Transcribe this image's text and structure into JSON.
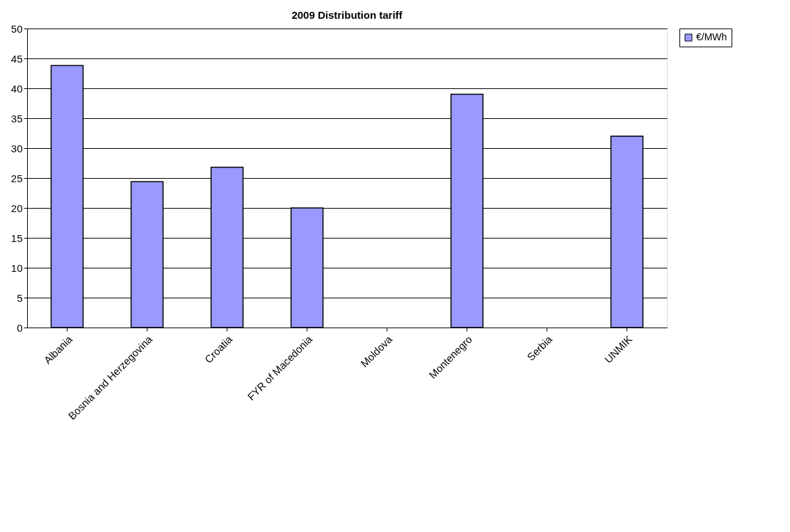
{
  "chart_data": {
    "type": "bar",
    "title": "2009 Distribution tariff",
    "categories": [
      "Albania",
      "Bosnia and Herzegovina",
      "Croatia",
      "FYR of Macedonia",
      "Moldova",
      "Montenegro",
      "Serbia",
      "UNMIK"
    ],
    "series": [
      {
        "name": "€/MWh",
        "color": "#9999ff",
        "values": [
          43.8,
          24.4,
          26.8,
          20.0,
          null,
          39.0,
          null,
          32.0
        ]
      }
    ],
    "ylim": [
      0,
      50
    ],
    "yticks": [
      0,
      5,
      10,
      15,
      20,
      25,
      30,
      35,
      40,
      45,
      50
    ],
    "grid": "y",
    "legend": "right"
  }
}
